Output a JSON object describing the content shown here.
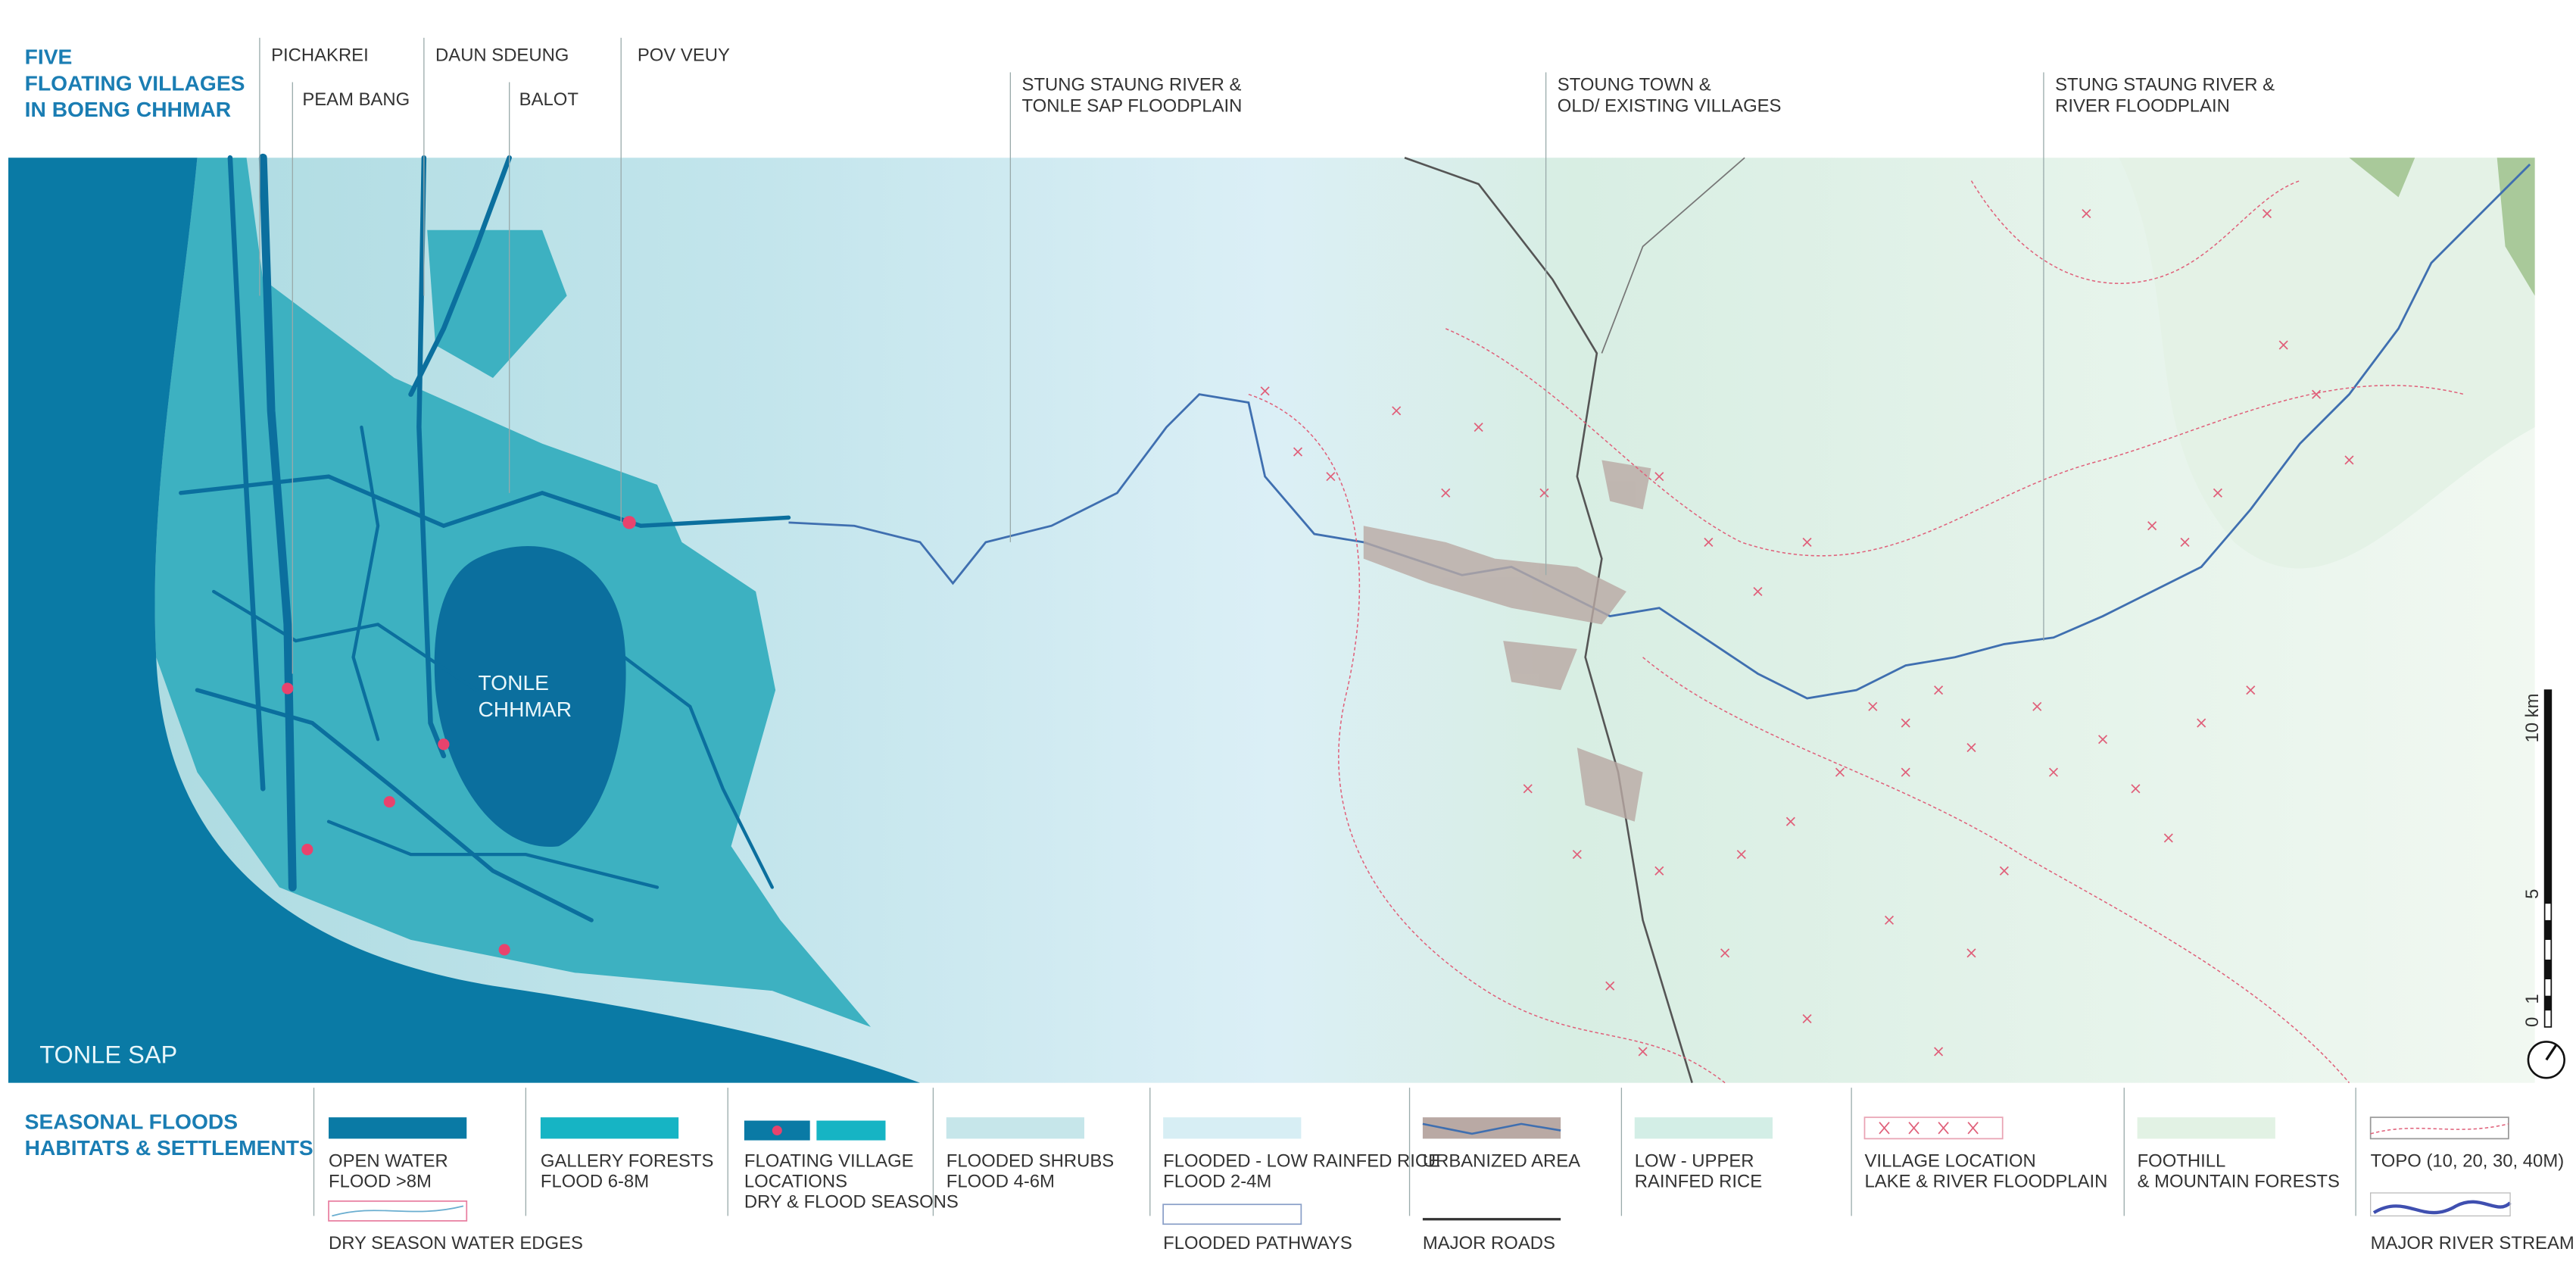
{
  "header": {
    "title": [
      "FIVE",
      "FLOATING VILLAGES",
      "IN BOENG CHHMAR"
    ],
    "villages": [
      "PICHAKREI",
      "PEAM BANG",
      "DAUN SDEUNG",
      "BALOT",
      "POV VEUY"
    ],
    "regions": [
      [
        "STUNG STAUNG RIVER &",
        "TONLE SAP FLOODPLAIN"
      ],
      [
        "STOUNG TOWN &",
        "OLD/ EXISTING VILLAGES"
      ],
      [
        "STUNG STAUNG RIVER &",
        "RIVER FLOODPLAIN"
      ]
    ]
  },
  "map": {
    "labels": [
      [
        "TONLE",
        "CHHMAR"
      ],
      [
        "TONLE SAP"
      ]
    ],
    "scale": [
      "10 km",
      "5",
      "1",
      "0"
    ]
  },
  "legend": {
    "title": [
      "SEASONAL FLOODS",
      "HABITATS & SETTLEMENTS"
    ],
    "items": [
      {
        "lines": [
          "OPEN WATER",
          "FLOOD >8M"
        ],
        "color": "#0a7aa5"
      },
      {
        "lines": [
          "GALLERY FORESTS",
          "FLOOD 6-8M"
        ],
        "color": "#16b4c4"
      },
      {
        "lines": [
          "FLOATING VILLAGE",
          "LOCATIONS",
          "DRY & FLOOD SEASONS"
        ]
      },
      {
        "lines": [
          "FLOODED SHRUBS",
          "FLOOD 4-6M"
        ],
        "color": "#c6e6ea"
      },
      {
        "lines": [
          "FLOODED - LOW RAINFED RICE",
          "FLOOD 2-4M"
        ],
        "color": "#d7eef4"
      },
      {
        "lines": [
          "URBANIZED AREA"
        ]
      },
      {
        "lines": [
          "LOW - UPPER",
          "RAINFED RICE"
        ],
        "color": "#d3eee6"
      },
      {
        "lines": [
          "VILLAGE LOCATION",
          "LAKE & RIVER FLOODPLAIN"
        ]
      },
      {
        "lines": [
          "FOOTHILL",
          "& MOUNTAIN FORESTS"
        ],
        "color": "#e2f2e4"
      },
      {
        "lines": [
          "TOPO (10, 20, 30, 40M)"
        ]
      }
    ],
    "second_row": [
      "DRY SEASON WATER EDGES",
      "FLOODED PATHWAYS",
      "MAJOR ROADS",
      "MAJOR RIVER STREAM"
    ]
  }
}
